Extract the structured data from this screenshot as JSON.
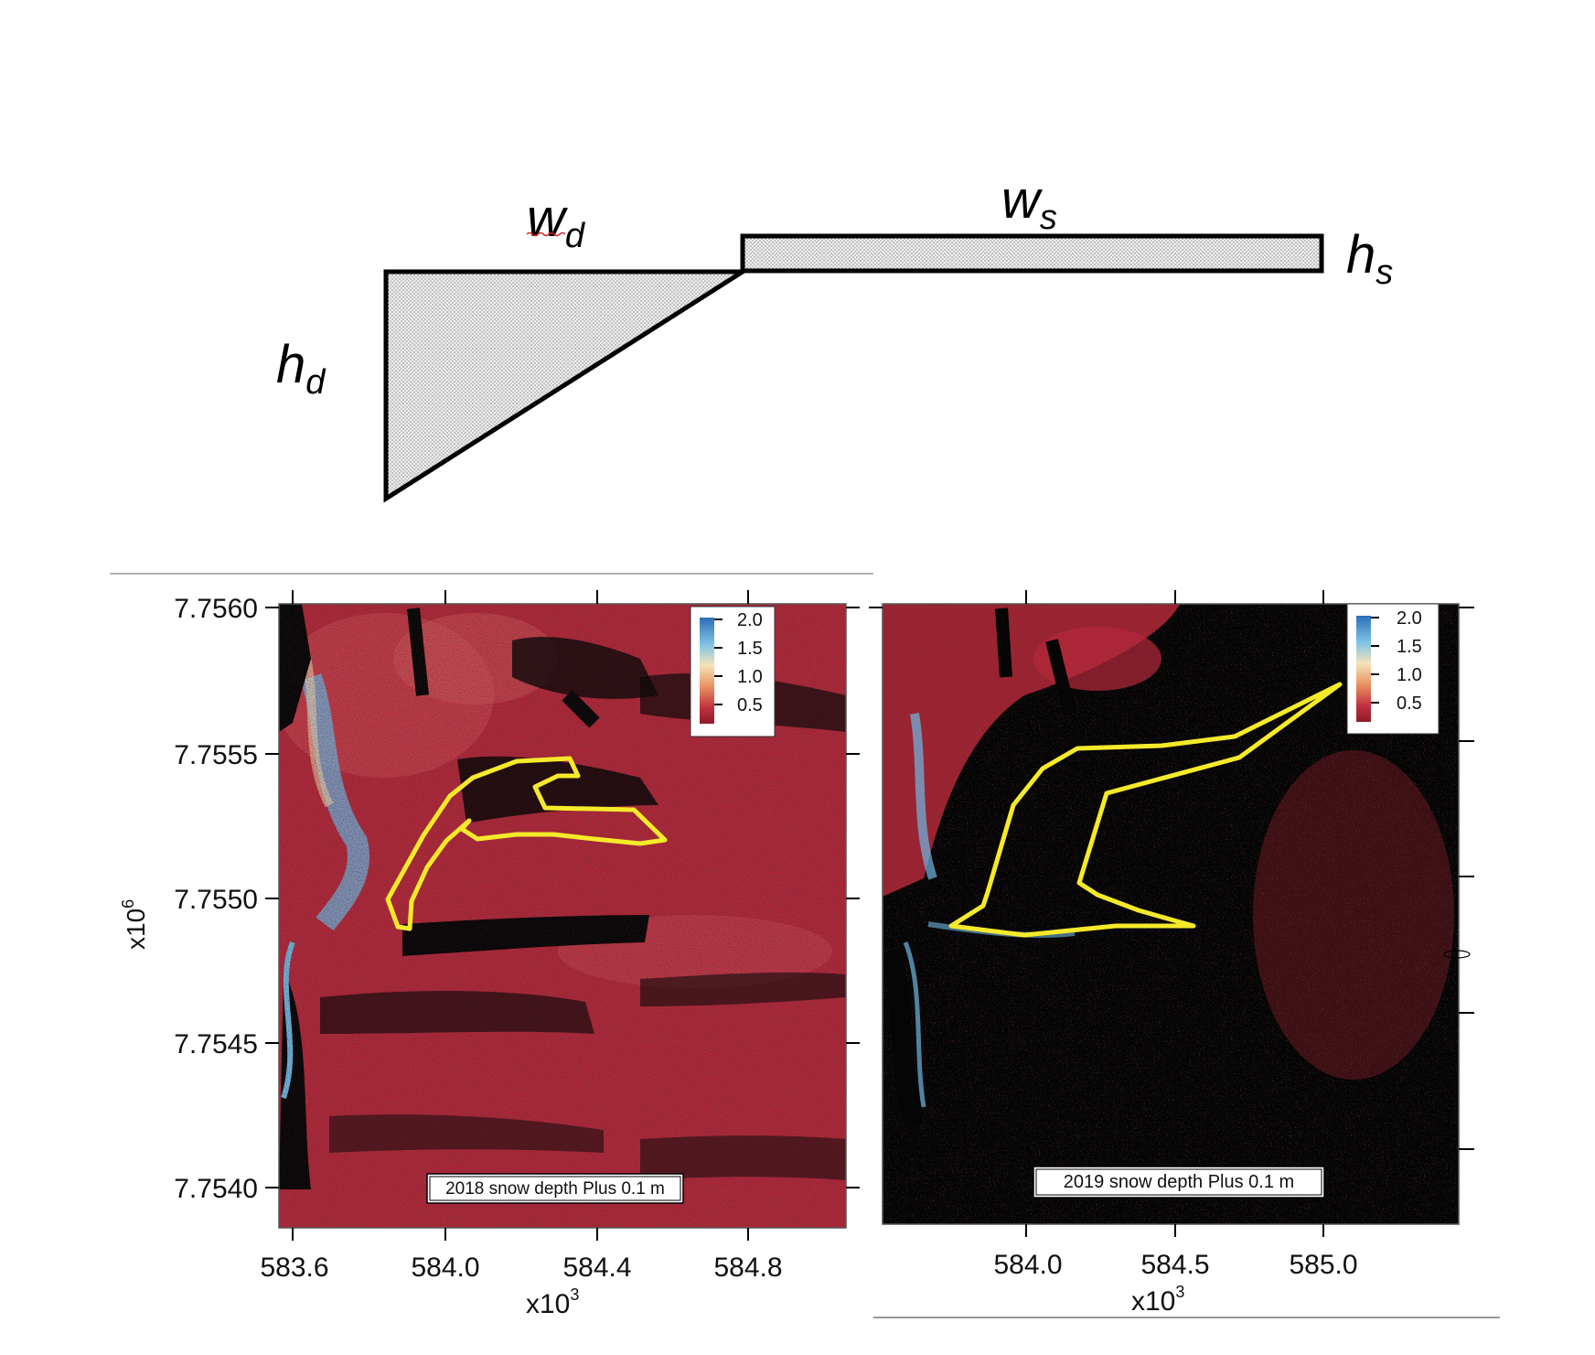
{
  "diagram": {
    "labels": {
      "wd": {
        "main": "w",
        "sub": "d"
      },
      "ws": {
        "main": "w",
        "sub": "s"
      },
      "hs": {
        "main": "h",
        "sub": "s"
      },
      "hd": {
        "main": "h",
        "sub": "d"
      }
    }
  },
  "colorbar": {
    "ticks": [
      "2.0",
      "1.5",
      "1.0",
      "0.5"
    ],
    "colors": [
      "#2c6fb6",
      "#7fc3e6",
      "#f4e3b8",
      "#e9925f",
      "#c23040",
      "#8e1b2a"
    ]
  },
  "panels": [
    {
      "id": "2018",
      "caption": "2018 snow depth Plus 0.1 m",
      "x_ticks": [
        "583.6",
        "584.0",
        "584.4",
        "584.8"
      ],
      "x_multiplier": {
        "base": "x10",
        "exp": "3"
      },
      "y_ticks": [
        "7.7560",
        "7.7555",
        "7.7550",
        "7.7545",
        "7.7540"
      ],
      "y_multiplier": {
        "base": "x10",
        "exp": "6"
      }
    },
    {
      "id": "2019",
      "caption": "2019 snow depth Plus 0.1 m",
      "x_ticks": [
        "584.0",
        "584.5",
        "585.0"
      ],
      "x_multiplier": {
        "base": "x10",
        "exp": "3"
      }
    }
  ],
  "colors": {
    "outline": "#f5ea2a",
    "snow_red": "#b3293a",
    "shadow_black": "#050505",
    "stipple": "#e4e4e4"
  }
}
